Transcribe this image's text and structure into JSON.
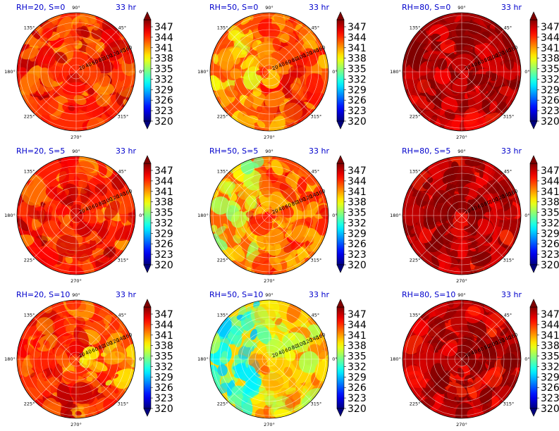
{
  "chart_data": {
    "type": "heatmap",
    "projection": "polar",
    "grid": true,
    "layout": "3 rows x 3 columns",
    "colormap": "jet",
    "colorbar": {
      "min": 320,
      "max": 347,
      "ticks": [
        "347",
        "344",
        "341",
        "338",
        "335",
        "332",
        "329",
        "326",
        "323",
        "320"
      ],
      "extend": "both"
    },
    "angle_ticks": [
      "90°",
      "45°",
      "0°",
      "315°",
      "270°",
      "225°",
      "180°",
      "135°"
    ],
    "radial_ticks": [
      "20",
      "40",
      "60",
      "80",
      "100",
      "120",
      "140",
      "160"
    ],
    "panels": [
      {
        "title": "RH=20, S=0",
        "time_label": "33 hr",
        "rh": 20,
        "s": 0,
        "base_value": 342.5
      },
      {
        "title": "RH=50, S=0",
        "time_label": "33 hr",
        "rh": 50,
        "s": 0,
        "base_value": 341.5
      },
      {
        "title": "RH=80, S=0",
        "time_label": "33 hr",
        "rh": 80,
        "s": 0,
        "base_value": 346
      },
      {
        "title": "RH=20, S=5",
        "time_label": "33 hr",
        "rh": 20,
        "s": 5,
        "base_value": 342.8
      },
      {
        "title": "RH=50, S=5",
        "time_label": "33 hr",
        "rh": 50,
        "s": 5,
        "base_value": 341
      },
      {
        "title": "RH=80, S=5",
        "time_label": "33 hr",
        "rh": 80,
        "s": 5,
        "base_value": 345.6
      },
      {
        "title": "RH=20, S=10",
        "time_label": "33 hr",
        "rh": 20,
        "s": 10,
        "base_value": 342.4
      },
      {
        "title": "RH=50, S=10",
        "time_label": "33 hr",
        "rh": 50,
        "s": 10,
        "base_value": 338
      },
      {
        "title": "RH=80, S=10",
        "time_label": "33 hr",
        "rh": 80,
        "s": 10,
        "base_value": 345.3
      }
    ]
  }
}
